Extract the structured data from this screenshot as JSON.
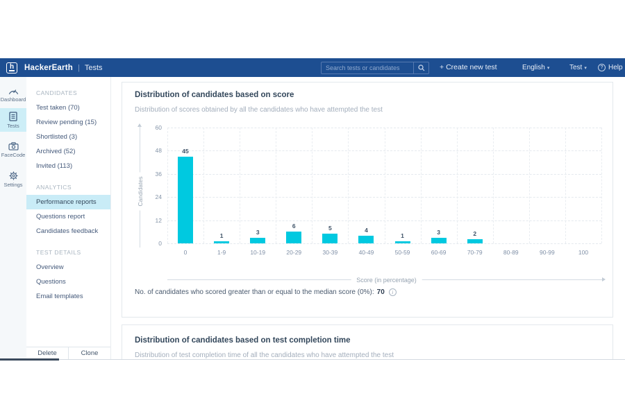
{
  "navbar": {
    "brand": "HackerEarth",
    "product": "Tests",
    "search_placeholder": "Search tests or candidates",
    "create_label": "Create new test",
    "language_label": "English",
    "account_label": "Test",
    "help_label": "Help"
  },
  "icons": {
    "plus": "+",
    "chevron": "▾",
    "help": "?",
    "info": "i",
    "logo_letter": "h"
  },
  "iconbar": {
    "items": [
      {
        "id": "dashboard",
        "label": "Dashboard",
        "active": false
      },
      {
        "id": "tests",
        "label": "Tests",
        "active": true
      },
      {
        "id": "facecode",
        "label": "FaceCode",
        "active": false
      },
      {
        "id": "settings",
        "label": "Settings",
        "active": false
      }
    ]
  },
  "sidebar": {
    "sections": [
      {
        "header": "CANDIDATES",
        "items": [
          {
            "label": "Test taken (70)"
          },
          {
            "label": "Review pending (15)"
          },
          {
            "label": "Shortlisted (3)"
          },
          {
            "label": "Archived (52)"
          },
          {
            "label": "Invited (113)"
          }
        ]
      },
      {
        "header": "ANALYTICS",
        "items": [
          {
            "label": "Performance reports",
            "active": true
          },
          {
            "label": "Questions report"
          },
          {
            "label": "Candidates feedback"
          }
        ]
      },
      {
        "header": "TEST DETAILS",
        "items": [
          {
            "label": "Overview"
          },
          {
            "label": "Questions"
          },
          {
            "label": "Email templates"
          }
        ]
      }
    ],
    "delete_label": "Delete",
    "clone_label": "Clone"
  },
  "score_card": {
    "title": "Distribution of candidates based on score",
    "subtitle": "Distribution of scores obtained by all the candidates who have attempted the test",
    "median_prefix": "No. of candidates who scored greater than or equal to the median score (0%):",
    "median_value": "70"
  },
  "chart_data": {
    "type": "bar",
    "title": "Distribution of candidates based on score",
    "categories": [
      "0",
      "1-9",
      "10-19",
      "20-29",
      "30-39",
      "40-49",
      "50-59",
      "60-69",
      "70-79",
      "80-89",
      "90-99",
      "100"
    ],
    "values": [
      45,
      1,
      3,
      6,
      5,
      4,
      1,
      3,
      2,
      0,
      0,
      0
    ],
    "xlabel": "Score (in percentage)",
    "ylabel": "Candidates",
    "ylim": [
      0,
      60
    ],
    "yticks": [
      0,
      12,
      24,
      36,
      48,
      60
    ],
    "bar_color": "#00c9e0",
    "grid": "dashed",
    "legend": "none"
  },
  "completion_card": {
    "title": "Distribution of candidates based on test completion time",
    "subtitle": "Distribution of test completion time of all the candidates who have attempted the test"
  },
  "colors": {
    "navbar_bg": "#1d4e91",
    "accent_cyan": "#00c9e0",
    "active_highlight": "#c9ecf7",
    "title_text": "#33475b",
    "muted_text": "#a3aebc"
  }
}
